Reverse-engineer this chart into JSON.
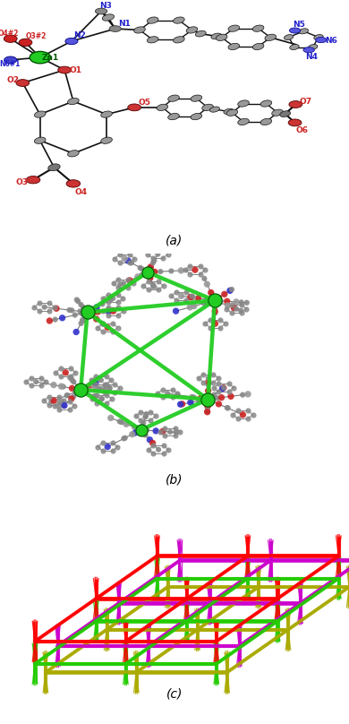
{
  "figure_width": 3.9,
  "figure_height": 8.08,
  "dpi": 100,
  "background_color": "#ffffff",
  "caption_fontsize": 10,
  "panel_a_label": "(a)",
  "panel_b_label": "(b)",
  "panel_c_label": "(c)",
  "green": "#22cc22",
  "red": "#cc2222",
  "blue": "#2222cc",
  "gray": "#888888",
  "colors_c": [
    "#ff0000",
    "#22cc00",
    "#cc00cc",
    "#aaaa00"
  ]
}
